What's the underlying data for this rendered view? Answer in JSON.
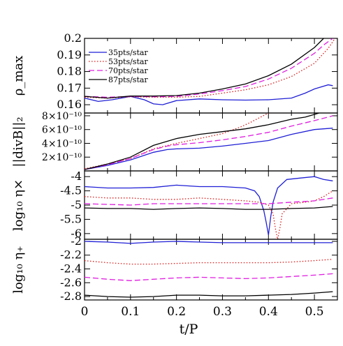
{
  "chart_data": {
    "type": "line",
    "xlabel": "t/P",
    "xlim": [
      0,
      0.55
    ],
    "xticks": [
      "0",
      "0.1",
      "0.2",
      "0.3",
      "0.4",
      "0.5"
    ],
    "legend": {
      "placement": "top-left",
      "entries": [
        {
          "name": "35pts/star",
          "color": "#1f1fd6",
          "dash": "solid"
        },
        {
          "name": "53pts/star",
          "color": "#dd1a1a",
          "dash": "dotted"
        },
        {
          "name": "70pts/star",
          "color": "#e01ee0",
          "dash": "dashed"
        },
        {
          "name": "87pts/star",
          "color": "#000000",
          "dash": "solid"
        }
      ]
    },
    "panels": [
      {
        "ylabel": "ρ_max",
        "ylim": [
          0.155,
          0.2
        ],
        "yticks": [
          "0.16",
          "0.17",
          "0.18",
          "0.19",
          "0.2"
        ],
        "series": [
          {
            "name": "35pts/star",
            "x": [
              0,
              0.03,
              0.06,
              0.1,
              0.13,
              0.15,
              0.17,
              0.2,
              0.25,
              0.3,
              0.35,
              0.4,
              0.45,
              0.48,
              0.5,
              0.53,
              0.54
            ],
            "y": [
              0.164,
              0.162,
              0.163,
              0.165,
              0.163,
              0.1605,
              0.16,
              0.1625,
              0.1635,
              0.163,
              0.1628,
              0.163,
              0.164,
              0.167,
              0.1695,
              0.172,
              0.1715
            ]
          },
          {
            "name": "53pts/star",
            "x": [
              0,
              0.05,
              0.1,
              0.15,
              0.2,
              0.25,
              0.3,
              0.35,
              0.4,
              0.45,
              0.5,
              0.53,
              0.545
            ],
            "y": [
              0.1645,
              0.164,
              0.1648,
              0.1645,
              0.1645,
              0.165,
              0.167,
              0.169,
              0.172,
              0.177,
              0.185,
              0.194,
              0.2
            ]
          },
          {
            "name": "70pts/star",
            "x": [
              0,
              0.05,
              0.1,
              0.15,
              0.2,
              0.25,
              0.3,
              0.35,
              0.4,
              0.45,
              0.5,
              0.52,
              0.54
            ],
            "y": [
              0.165,
              0.1645,
              0.165,
              0.1648,
              0.165,
              0.1665,
              0.1685,
              0.171,
              0.1755,
              0.182,
              0.191,
              0.196,
              0.2
            ]
          },
          {
            "name": "87pts/star",
            "x": [
              0,
              0.05,
              0.1,
              0.15,
              0.2,
              0.25,
              0.3,
              0.35,
              0.4,
              0.45,
              0.5,
              0.52
            ],
            "y": [
              0.165,
              0.164,
              0.1652,
              0.1652,
              0.1655,
              0.167,
              0.1695,
              0.1725,
              0.1775,
              0.1845,
              0.1945,
              0.2
            ]
          }
        ]
      },
      {
        "ylabel": "||divB||₂",
        "ylim": [
          0,
          8.4e-10
        ],
        "yticks": [
          "2×10⁻¹⁰",
          "4×10⁻¹⁰",
          "6×10⁻¹⁰",
          "8×10⁻¹⁰"
        ],
        "ytick_values": [
          2e-10,
          4e-10,
          6e-10,
          8e-10
        ],
        "series": [
          {
            "name": "35pts/star",
            "x": [
              0,
              0.05,
              0.1,
              0.15,
              0.18,
              0.2,
              0.25,
              0.3,
              0.35,
              0.4,
              0.45,
              0.5,
              0.54
            ],
            "y": [
              2e-11,
              8e-11,
              1.6e-10,
              2.7e-10,
              3.1e-10,
              3.2e-10,
              3.3e-10,
              3.6e-10,
              4e-10,
              4.4e-10,
              5.3e-10,
              6e-10,
              6.2e-10
            ]
          },
          {
            "name": "53pts/star",
            "x": [
              0,
              0.05,
              0.1,
              0.15,
              0.2,
              0.25,
              0.3,
              0.32,
              0.34,
              0.36,
              0.38,
              0.4
            ],
            "y": [
              3e-11,
              1e-10,
              1.8e-10,
              3.2e-10,
              4e-10,
              4.7e-10,
              5.4e-10,
              5.9e-10,
              6.4e-10,
              7e-10,
              7.7e-10,
              8.4e-10
            ]
          },
          {
            "name": "70pts/star",
            "x": [
              0,
              0.05,
              0.1,
              0.15,
              0.18,
              0.2,
              0.25,
              0.3,
              0.35,
              0.4,
              0.45,
              0.5,
              0.54
            ],
            "y": [
              2e-11,
              9e-11,
              1.8e-10,
              3.1e-10,
              3.6e-10,
              3.8e-10,
              4.1e-10,
              4.5e-10,
              5e-10,
              5.6e-10,
              6.5e-10,
              7.3e-10,
              8e-10
            ]
          },
          {
            "name": "87pts/star",
            "x": [
              0,
              0.05,
              0.1,
              0.15,
              0.2,
              0.25,
              0.3,
              0.35,
              0.4,
              0.45,
              0.48,
              0.5,
              0.51
            ],
            "y": [
              2e-11,
              1e-10,
              2e-10,
              3.7e-10,
              4.7e-10,
              5.3e-10,
              5.7e-10,
              6.1e-10,
              6.7e-10,
              7.5e-10,
              7.8e-10,
              8.2e-10,
              8.4e-10
            ]
          }
        ]
      },
      {
        "ylabel": "log₁₀ η×",
        "ylim": [
          -6.2,
          -3.8
        ],
        "yticks": [
          "-6",
          "-5.5",
          "-5",
          "-4.5",
          "-4"
        ],
        "ytick_values": [
          -6,
          -5.5,
          -5,
          -4.5,
          -4
        ],
        "series": [
          {
            "name": "35pts/star",
            "x": [
              0,
              0.05,
              0.1,
              0.15,
              0.2,
              0.25,
              0.3,
              0.35,
              0.37,
              0.38,
              0.39,
              0.395,
              0.4,
              0.405,
              0.41,
              0.42,
              0.44,
              0.47,
              0.5,
              0.52,
              0.54
            ],
            "y": [
              -4.35,
              -4.4,
              -4.4,
              -4.38,
              -4.3,
              -4.35,
              -4.35,
              -4.4,
              -4.5,
              -4.7,
              -5.2,
              -5.6,
              -6.05,
              -5.4,
              -4.9,
              -4.4,
              -4.1,
              -4.05,
              -4.0,
              -4.1,
              -4.15
            ]
          },
          {
            "name": "53pts/star",
            "x": [
              0,
              0.05,
              0.1,
              0.15,
              0.2,
              0.25,
              0.3,
              0.35,
              0.38,
              0.4,
              0.41,
              0.415,
              0.42,
              0.425,
              0.43,
              0.45,
              0.48,
              0.5,
              0.52,
              0.54
            ],
            "y": [
              -4.7,
              -4.75,
              -4.75,
              -4.8,
              -4.8,
              -4.75,
              -4.8,
              -4.85,
              -4.9,
              -5.0,
              -5.3,
              -5.8,
              -6.2,
              -5.8,
              -5.3,
              -4.95,
              -4.9,
              -4.85,
              -4.7,
              -4.5
            ]
          },
          {
            "name": "70pts/star",
            "x": [
              0,
              0.1,
              0.15,
              0.2,
              0.25,
              0.3,
              0.35,
              0.4,
              0.45,
              0.5,
              0.54
            ],
            "y": [
              -4.95,
              -5.0,
              -4.95,
              -4.95,
              -4.95,
              -4.95,
              -4.95,
              -4.95,
              -4.9,
              -4.85,
              -4.75
            ]
          },
          {
            "name": "87pts/star",
            "x": [
              0,
              0.05,
              0.1,
              0.15,
              0.2,
              0.25,
              0.3,
              0.35,
              0.4,
              0.45,
              0.5,
              0.54
            ],
            "y": [
              -5.1,
              -5.12,
              -5.12,
              -5.15,
              -5.12,
              -5.1,
              -5.12,
              -5.15,
              -5.15,
              -5.12,
              -5.1,
              -5.05
            ]
          }
        ]
      },
      {
        "ylabel": "log₁₀ η₊",
        "ylim": [
          -2.85,
          -1.97
        ],
        "yticks": [
          "-2.8",
          "-2.6",
          "-2.4",
          "-2.2",
          "-2"
        ],
        "ytick_values": [
          -2.8,
          -2.6,
          -2.4,
          -2.2,
          -2.0
        ],
        "series": [
          {
            "name": "35pts/star",
            "x": [
              0,
              0.05,
              0.1,
              0.15,
              0.2,
              0.25,
              0.3,
              0.35,
              0.4,
              0.45,
              0.5,
              0.54
            ],
            "y": [
              -2.0,
              -2.01,
              -2.03,
              -2.01,
              -2.0,
              -2.01,
              -2.02,
              -2.02,
              -2.02,
              -2.02,
              -2.02,
              -2.02
            ]
          },
          {
            "name": "53pts/star",
            "x": [
              0,
              0.05,
              0.1,
              0.15,
              0.2,
              0.25,
              0.3,
              0.35,
              0.4,
              0.45,
              0.5,
              0.54
            ],
            "y": [
              -2.28,
              -2.31,
              -2.33,
              -2.33,
              -2.32,
              -2.31,
              -2.31,
              -2.31,
              -2.31,
              -2.3,
              -2.28,
              -2.26
            ]
          },
          {
            "name": "70pts/star",
            "x": [
              0,
              0.05,
              0.1,
              0.15,
              0.2,
              0.25,
              0.3,
              0.35,
              0.4,
              0.45,
              0.5,
              0.54
            ],
            "y": [
              -2.52,
              -2.55,
              -2.57,
              -2.55,
              -2.53,
              -2.52,
              -2.53,
              -2.54,
              -2.53,
              -2.51,
              -2.49,
              -2.47
            ]
          },
          {
            "name": "87pts/star",
            "x": [
              0,
              0.05,
              0.1,
              0.15,
              0.2,
              0.25,
              0.3,
              0.35,
              0.4,
              0.45,
              0.5,
              0.54
            ],
            "y": [
              -2.78,
              -2.8,
              -2.81,
              -2.8,
              -2.78,
              -2.78,
              -2.79,
              -2.79,
              -2.78,
              -2.77,
              -2.75,
              -2.73
            ]
          }
        ]
      }
    ]
  }
}
